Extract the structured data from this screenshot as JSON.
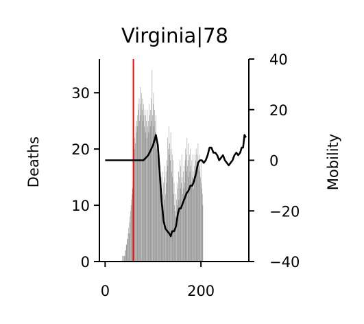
{
  "chart_data": {
    "type": "bar",
    "title": "Virginia|78",
    "ylabel_left": "Deaths",
    "ylabel_right": "Mobility",
    "xlim": [
      -12,
      300
    ],
    "ylim_left": [
      0,
      36
    ],
    "ylim_right": [
      -40,
      40
    ],
    "x_ticks": [
      0,
      200
    ],
    "x_tick_labels": [
      "0",
      "200"
    ],
    "y_left_ticks": [
      0,
      10,
      20,
      30
    ],
    "y_left_tick_labels": [
      "0",
      "10",
      "20",
      "30"
    ],
    "y_right_ticks": [
      -40,
      -20,
      0,
      20,
      40
    ],
    "y_right_tick_labels": [
      "−40",
      "−20",
      "0",
      "20",
      "40"
    ],
    "vline_x": 59,
    "colors": {
      "bars": "#808080",
      "mobility_line": "#000000",
      "vline": "#ff0000"
    },
    "deaths_segments": [
      {
        "from": 30,
        "to": 42,
        "values": [
          0,
          0,
          0,
          0,
          0,
          0,
          1,
          1,
          0,
          1,
          1,
          1,
          2
        ]
      },
      {
        "from": 43,
        "to": 57,
        "values": [
          2,
          3,
          3,
          4,
          4,
          5,
          6,
          5,
          7,
          8,
          9,
          10,
          11,
          12,
          13
        ]
      },
      {
        "from": 58,
        "to": 75,
        "values": [
          14,
          16,
          18,
          20,
          22,
          21,
          24,
          23,
          25,
          26,
          24,
          28,
          27,
          29,
          25,
          31,
          26,
          28
        ]
      },
      {
        "from": 76,
        "to": 95,
        "values": [
          30,
          27,
          29,
          25,
          28,
          26,
          24,
          27,
          23,
          26,
          25,
          22,
          27,
          24,
          25,
          23,
          28,
          26,
          24,
          27
        ]
      },
      {
        "from": 96,
        "to": 110,
        "values": [
          29,
          25,
          34,
          26,
          28,
          30,
          24,
          27,
          25,
          23,
          26,
          20,
          22,
          19,
          21
        ]
      },
      {
        "from": 111,
        "to": 125,
        "values": [
          18,
          16,
          19,
          14,
          17,
          12,
          15,
          13,
          16,
          12,
          10,
          14,
          11,
          15,
          17
        ]
      },
      {
        "from": 126,
        "to": 145,
        "values": [
          12,
          16,
          14,
          18,
          22,
          17,
          20,
          24,
          19,
          21,
          18,
          23,
          20,
          16,
          19,
          15,
          18,
          12,
          14,
          10
        ]
      },
      {
        "from": 146,
        "to": 165,
        "values": [
          9,
          12,
          8,
          11,
          14,
          10,
          13,
          16,
          11,
          15,
          18,
          13,
          17,
          14,
          19,
          15,
          12,
          16,
          13,
          17
        ]
      },
      {
        "from": 166,
        "to": 185,
        "values": [
          14,
          18,
          20,
          16,
          19,
          22,
          17,
          21,
          18,
          15,
          19,
          16,
          20,
          17,
          14,
          18,
          15,
          19,
          16,
          13
        ]
      },
      {
        "from": 186,
        "to": 205,
        "values": [
          17,
          15,
          19,
          18,
          20,
          16,
          19,
          17,
          21,
          18,
          16,
          19,
          17,
          15,
          18,
          14,
          13,
          12,
          10,
          0
        ]
      }
    ],
    "mobility": {
      "x": [
        0,
        5,
        10,
        20,
        30,
        40,
        50,
        55,
        60,
        65,
        70,
        75,
        80,
        85,
        90,
        95,
        100,
        103,
        106,
        110,
        114,
        118,
        122,
        126,
        130,
        134,
        137,
        140,
        144,
        148,
        152,
        155,
        158,
        162,
        166,
        170,
        174,
        178,
        182,
        186,
        190,
        194,
        198,
        202,
        206,
        210,
        214,
        218,
        222,
        226,
        230,
        234,
        238,
        242,
        246,
        250,
        254,
        258,
        262,
        266,
        270,
        274,
        278,
        282,
        285,
        288,
        291,
        294
      ],
      "y": [
        0,
        0,
        0,
        0,
        0,
        0,
        0,
        0,
        0,
        0,
        0,
        0,
        0,
        1,
        2,
        4,
        6,
        8,
        10,
        6,
        -5,
        -16,
        -24,
        -27,
        -28,
        -29,
        -30,
        -28,
        -28,
        -26,
        -21,
        -19,
        -19,
        -17,
        -15,
        -13,
        -12,
        -10,
        -10,
        -8,
        -5,
        -1,
        0,
        0,
        -1,
        0,
        2,
        5,
        5,
        3,
        3,
        2,
        0,
        1,
        2,
        0,
        -1,
        -2,
        -1,
        0,
        2,
        3,
        2,
        3,
        5,
        5,
        10,
        9
      ]
    }
  }
}
